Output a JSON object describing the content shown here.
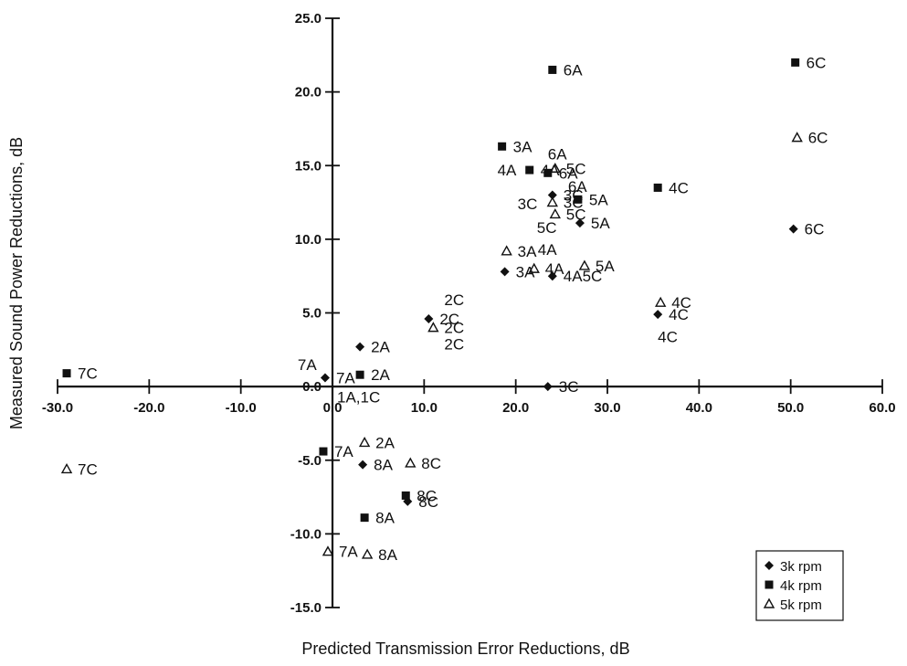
{
  "chart_data": {
    "type": "scatter",
    "xlabel": "Predicted Transmission Error Reductions, dB",
    "ylabel": "Measured Sound Power Reductions, dB",
    "xlim": [
      -30,
      60
    ],
    "ylim": [
      -15,
      25
    ],
    "x_ticks": [
      -30,
      -20,
      -10,
      0,
      10,
      20,
      30,
      40,
      50,
      60
    ],
    "x_tick_labels": [
      "-30.0",
      "-20.0",
      "-10.0",
      "0.0",
      "10.0",
      "20.0",
      "30.0",
      "40.0",
      "50.0",
      "60.0"
    ],
    "y_ticks": [
      -15,
      -10,
      -5,
      0,
      5,
      10,
      15,
      20,
      25
    ],
    "y_tick_labels": [
      "-15.0",
      "-10.0",
      "-5.0",
      "0.0",
      "5.0",
      "10.0",
      "15.0",
      "20.0",
      "25.0"
    ],
    "grid": false,
    "legend_position": "bottom-right",
    "series": [
      {
        "name": "3k rpm",
        "marker": "diamond",
        "points": [
          {
            "x": 3.0,
            "y": 2.7,
            "label": "2A"
          },
          {
            "x": 10.5,
            "y": 4.6,
            "label": "2C"
          },
          {
            "x": 18.8,
            "y": 7.8,
            "label": "3A"
          },
          {
            "x": 24.0,
            "y": 13.0,
            "label": "3C"
          },
          {
            "x": 24.0,
            "y": 7.5,
            "label": "4A5C"
          },
          {
            "x": 27.0,
            "y": 11.1,
            "label": "5A"
          },
          {
            "x": 50.3,
            "y": 10.7,
            "label": "6C"
          },
          {
            "x": 35.5,
            "y": 4.9,
            "label": "4C"
          },
          {
            "x": 23.5,
            "y": 0.0,
            "label": "3C"
          },
          {
            "x": -0.8,
            "y": 0.6,
            "label": "7A"
          },
          {
            "x": 3.3,
            "y": -5.3,
            "label": "8A"
          },
          {
            "x": 8.2,
            "y": -7.8,
            "label": "8C"
          }
        ]
      },
      {
        "name": "4k rpm",
        "marker": "square",
        "points": [
          {
            "x": -29.0,
            "y": 0.9,
            "label": "7C"
          },
          {
            "x": 3.0,
            "y": 0.8,
            "label": "2A"
          },
          {
            "x": 18.5,
            "y": 16.3,
            "label": "3A"
          },
          {
            "x": 21.5,
            "y": 14.7,
            "label": "4A"
          },
          {
            "x": 23.5,
            "y": 14.5,
            "label": "6A"
          },
          {
            "x": 24.0,
            "y": 21.5,
            "label": "6A"
          },
          {
            "x": 50.5,
            "y": 22.0,
            "label": "6C"
          },
          {
            "x": 26.8,
            "y": 12.7,
            "label": "5A"
          },
          {
            "x": 35.5,
            "y": 13.5,
            "label": "4C"
          },
          {
            "x": -1.0,
            "y": -4.4,
            "label": "7A"
          },
          {
            "x": 8.0,
            "y": -7.4,
            "label": "8C"
          },
          {
            "x": 3.5,
            "y": -8.9,
            "label": "8A"
          }
        ]
      },
      {
        "name": "5k rpm",
        "marker": "triangle",
        "points": [
          {
            "x": -29.0,
            "y": -5.6,
            "label": "7C"
          },
          {
            "x": 3.5,
            "y": -3.8,
            "label": "2A"
          },
          {
            "x": 11.0,
            "y": 4.0,
            "label": "2C"
          },
          {
            "x": 19.0,
            "y": 9.2,
            "label": "3A"
          },
          {
            "x": 22.0,
            "y": 8.0,
            "label": "4A"
          },
          {
            "x": 24.3,
            "y": 14.8,
            "label": "5C"
          },
          {
            "x": 24.0,
            "y": 12.5,
            "label": "3C"
          },
          {
            "x": 24.3,
            "y": 11.7,
            "label": "5C"
          },
          {
            "x": 27.5,
            "y": 8.2,
            "label": "5A"
          },
          {
            "x": 35.8,
            "y": 5.7,
            "label": "4C"
          },
          {
            "x": 50.7,
            "y": 16.9,
            "label": "6C"
          },
          {
            "x": 8.5,
            "y": -5.2,
            "label": "8C"
          },
          {
            "x": -0.5,
            "y": -11.2,
            "label": "7A"
          },
          {
            "x": 3.8,
            "y": -11.4,
            "label": "8A"
          }
        ]
      }
    ],
    "annotations": [
      {
        "text": "1A,1C",
        "x": 0.5,
        "y": -0.7
      },
      {
        "text": "2C",
        "x": 12.2,
        "y": 5.9
      },
      {
        "text": "2C",
        "x": 12.2,
        "y": 2.9
      },
      {
        "text": "6A",
        "x": 23.5,
        "y": 15.8
      },
      {
        "text": "4A",
        "x": 18.0,
        "y": 14.7
      },
      {
        "text": "3C",
        "x": 20.2,
        "y": 12.4
      },
      {
        "text": "5C",
        "x": 22.3,
        "y": 10.8
      },
      {
        "text": "6A",
        "x": 25.7,
        "y": 13.6
      },
      {
        "text": "4A",
        "x": 22.4,
        "y": 9.3
      },
      {
        "text": "4C",
        "x": 35.5,
        "y": 3.4
      },
      {
        "text": "7A",
        "x": -3.8,
        "y": 1.5
      }
    ]
  }
}
